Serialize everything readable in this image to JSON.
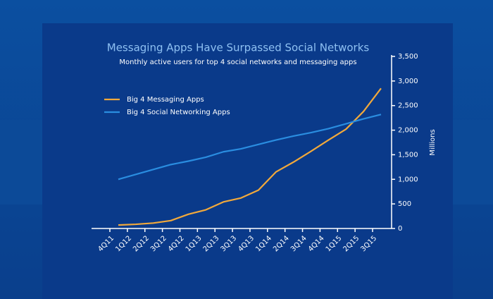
{
  "chart_data": {
    "type": "line",
    "title": "Messaging Apps Have Surpassed Social Networks",
    "subtitle": "Monthly active users for top 4 social networks and messaging apps",
    "y_axis_label": "Millions",
    "categories": [
      "4Q11",
      "1Q12",
      "2Q12",
      "3Q12",
      "4Q12",
      "1Q13",
      "2Q13",
      "3Q13",
      "4Q13",
      "1Q14",
      "2Q14",
      "3Q14",
      "4Q14",
      "1Q15",
      "2Q15",
      "3Q15"
    ],
    "series": [
      {
        "name": "Big 4 Messaging Apps",
        "color": "#f2a93b",
        "values": [
          70,
          85,
          110,
          160,
          290,
          380,
          540,
          620,
          780,
          1150,
          1350,
          1570,
          1800,
          2020,
          2380,
          2850
        ]
      },
      {
        "name": "Big 4 Social Networking Apps",
        "color": "#2a8de0",
        "values": [
          1000,
          1100,
          1200,
          1300,
          1370,
          1450,
          1560,
          1620,
          1710,
          1800,
          1880,
          1950,
          2030,
          2130,
          2230,
          2320
        ]
      }
    ],
    "ylim": [
      0,
      3500
    ],
    "yticks": [
      0,
      500,
      {
        "value": 1000,
        "label": "1,000"
      },
      {
        "value": 1500,
        "label": "1,500"
      },
      {
        "value": 2000,
        "label": "2,000"
      },
      {
        "value": 2500,
        "label": "2,500"
      },
      {
        "value": 3000,
        "label": "3,000"
      },
      {
        "value": 3500,
        "label": "3,500"
      }
    ],
    "legend": "upper-left"
  }
}
